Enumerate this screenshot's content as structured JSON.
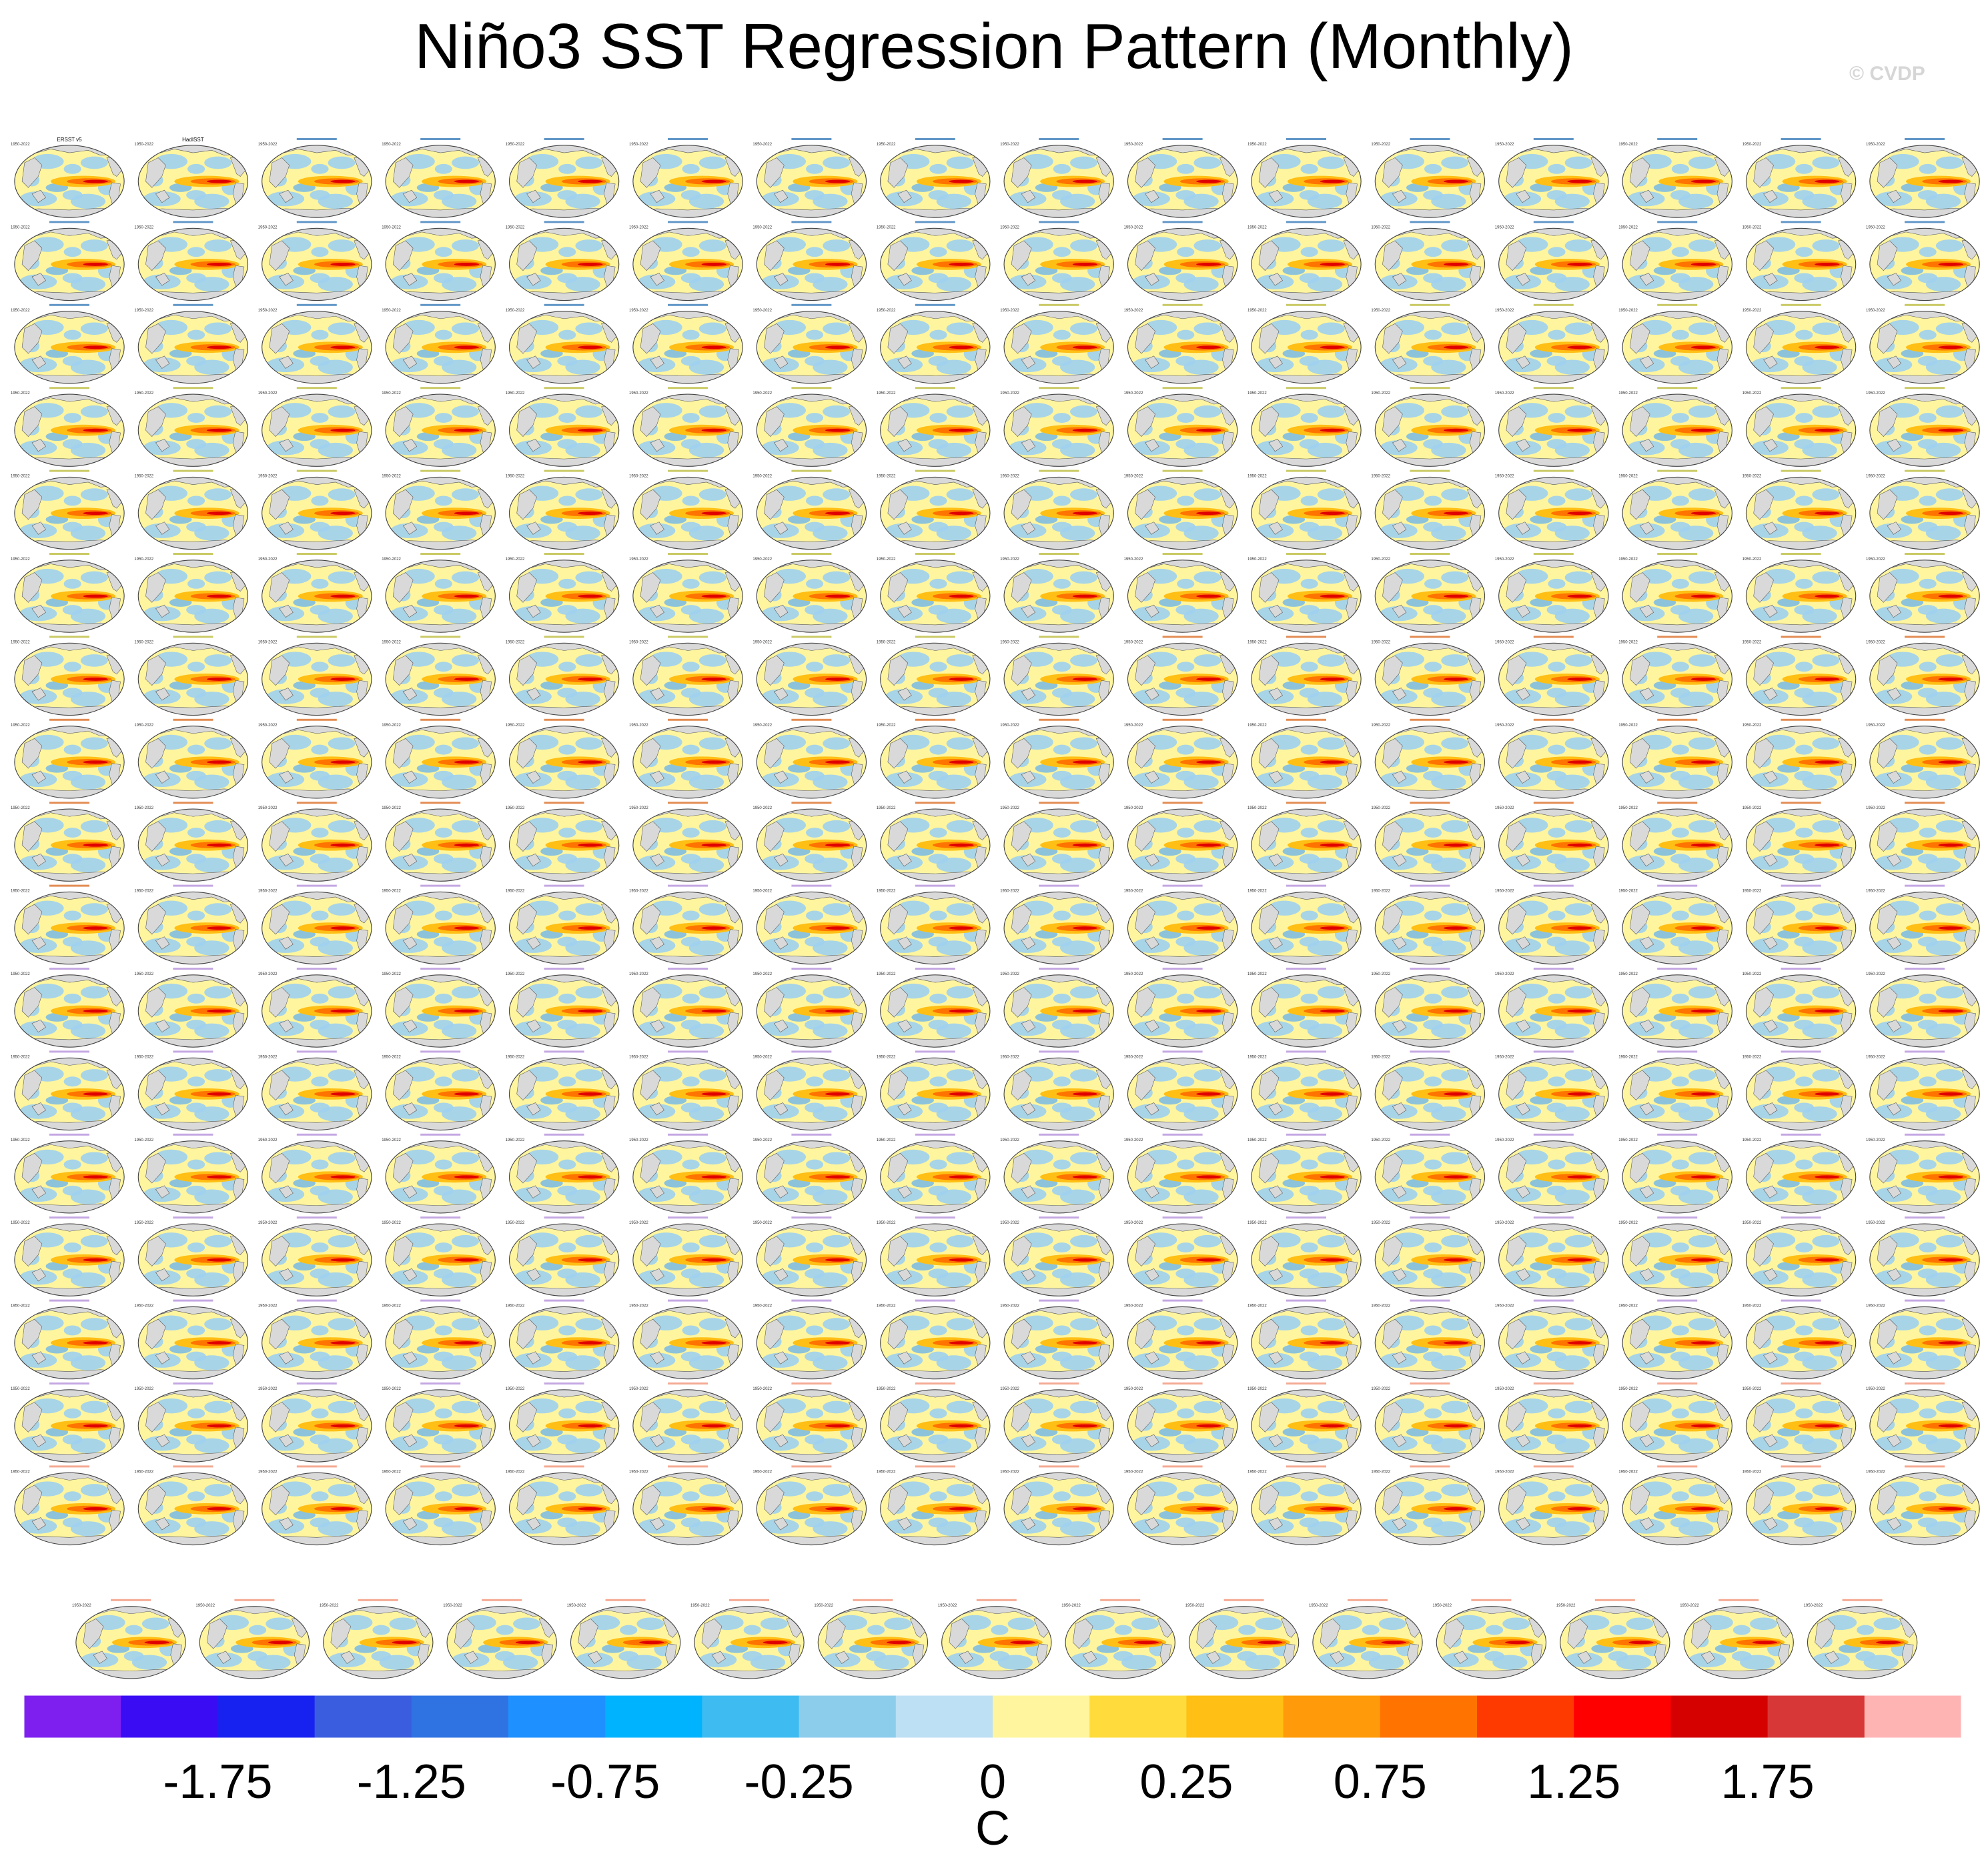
{
  "chart_data": {
    "type": "heatmap",
    "title": "Niño3 SST Regression Pattern (Monthly)",
    "watermark": "© CVDP",
    "panel_layout": {
      "rows": 18,
      "full_row_columns": 16,
      "last_row_columns": 15,
      "panel_count": 287
    },
    "panel_title_colors": {
      "observations": "#000000",
      "ACCESS-ESM1-5": "#2e74b5",
      "CanESM5": "#b8b832",
      "CESM1": "#d8661a",
      "CESM2": "#b08ad8",
      "CSIRO-Mk3-6-0": "#f08c6e"
    },
    "panel_corner_label": "1950-2022",
    "legible_panel_titles": [
      "ERSST v5",
      "HadISST"
    ],
    "colorbar": {
      "unit": "C",
      "tick_labels": [
        "-1.75",
        "-1.25",
        "-0.75",
        "-0.25",
        "0",
        "0.25",
        "0.75",
        "1.25",
        "1.75"
      ],
      "colors": [
        "#7e1ff0",
        "#3a0cf4",
        "#1822f0",
        "#3a5ddf",
        "#2f73e2",
        "#1e90ff",
        "#00b3ff",
        "#3ebcf2",
        "#8dcdec",
        "#bde0f4",
        "#fff59e",
        "#ffdc3c",
        "#ffbf14",
        "#ff9b0a",
        "#ff7300",
        "#ff3a00",
        "#ff0000",
        "#d50000",
        "#d83737",
        "#ffb4b4"
      ]
    }
  }
}
